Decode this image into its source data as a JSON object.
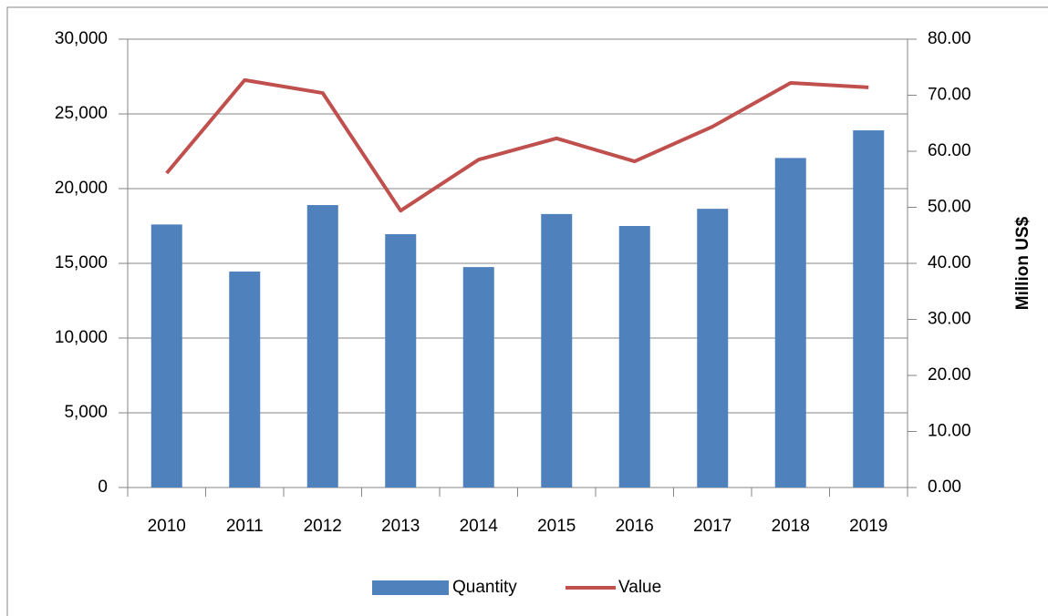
{
  "chart_data": {
    "type": "bar",
    "categories": [
      "2010",
      "2011",
      "2012",
      "2013",
      "2014",
      "2015",
      "2016",
      "2017",
      "2018",
      "2019"
    ],
    "series": [
      {
        "name": "Quantity",
        "type": "bar",
        "color": "#4f81bd",
        "values": [
          17600,
          14450,
          18900,
          16950,
          14750,
          18300,
          17500,
          18650,
          22050,
          23900
        ]
      },
      {
        "name": "Value",
        "type": "line",
        "axis": "y2",
        "color": "#c0504d",
        "values": [
          56.1,
          72.7,
          70.4,
          49.4,
          58.5,
          62.3,
          58.2,
          64.4,
          72.2,
          71.4
        ]
      }
    ],
    "ylim": [
      0,
      30000
    ],
    "yticks": [
      0,
      {
        "value": 5000,
        "label": "5,000"
      },
      {
        "value": 10000,
        "label": "10,000"
      },
      {
        "value": 15000,
        "label": "15,000"
      },
      {
        "value": 20000,
        "label": "20,000"
      },
      {
        "value": 25000,
        "label": "25,000"
      },
      {
        "value": 30000,
        "label": "30,000"
      }
    ],
    "y2lim": [
      0,
      80
    ],
    "y2ticks": [
      {
        "value": 0,
        "label": "0.00"
      },
      {
        "value": 10,
        "label": "10.00"
      },
      {
        "value": 20,
        "label": "20.00"
      },
      {
        "value": 30,
        "label": "30.00"
      },
      {
        "value": 40,
        "label": "40.00"
      },
      {
        "value": 50,
        "label": "50.00"
      },
      {
        "value": 60,
        "label": "60.00"
      },
      {
        "value": 70,
        "label": "70.00"
      },
      {
        "value": 80,
        "label": "80.00"
      }
    ],
    "y2label": "Million US$",
    "grid": true,
    "legend": "bottom"
  }
}
